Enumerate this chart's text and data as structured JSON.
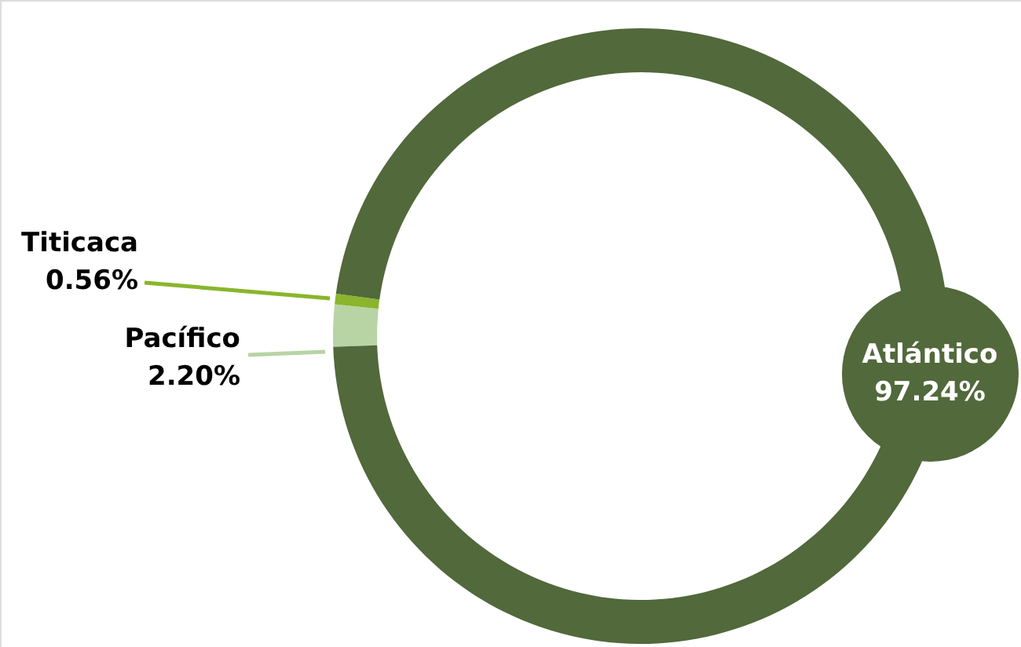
{
  "chart_data": {
    "type": "donut",
    "categories": [
      "Pacífico",
      "Titicaca",
      "Atlántico"
    ],
    "values": [
      2.2,
      0.56,
      97.24
    ],
    "value_labels": [
      "2.20%",
      "0.56%",
      "97.24%"
    ],
    "colors": [
      "#b8d4a4",
      "#8ab52c",
      "#51693b"
    ]
  }
}
